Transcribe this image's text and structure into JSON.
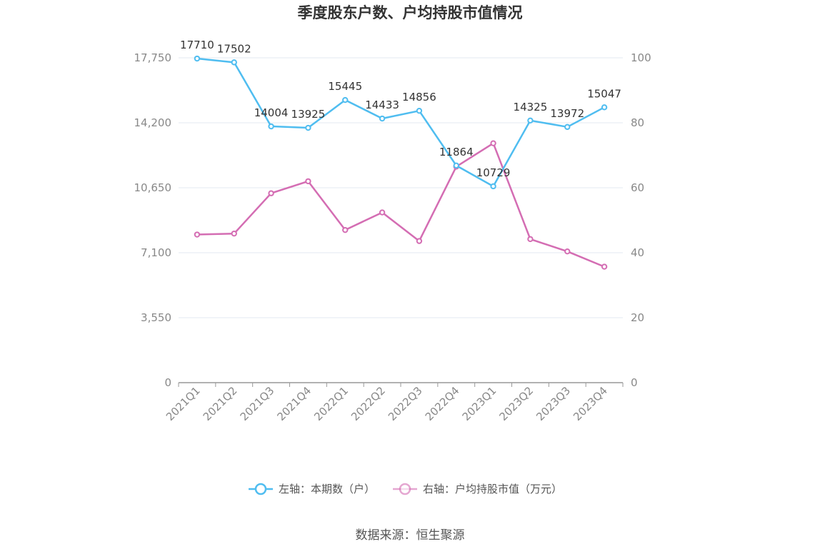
{
  "chart_data": {
    "type": "line",
    "title": "季度股东户数、户均持股市值情况",
    "categories": [
      "2021Q1",
      "2021Q2",
      "2021Q3",
      "2021Q4",
      "2022Q1",
      "2022Q2",
      "2022Q3",
      "2022Q4",
      "2023Q1",
      "2023Q2",
      "2023Q3",
      "2023Q4"
    ],
    "left_axis": {
      "min": 0,
      "max": 17750,
      "ticks": [
        "0",
        "3,550",
        "7,100",
        "10,650",
        "14,200",
        "17,750"
      ]
    },
    "right_axis": {
      "min": 0,
      "max": 100,
      "ticks": [
        "0",
        "20",
        "40",
        "60",
        "80",
        "100"
      ]
    },
    "series": [
      {
        "name": "左轴：本期数（户）",
        "axis": "left",
        "color": "#4fbdf0",
        "values": [
          17710,
          17502,
          14004,
          13925,
          15445,
          14433,
          14856,
          11864,
          10729,
          14325,
          13972,
          15047
        ],
        "labels": [
          "17710",
          "17502",
          "14004",
          "13925",
          "15445",
          "14433",
          "14856",
          "11864",
          "10729",
          "14325",
          "13972",
          "15047"
        ]
      },
      {
        "name": "右轴：户均持股市值（万元）",
        "axis": "right",
        "color": "#d46db3",
        "values": [
          45.6,
          45.9,
          58.3,
          62.0,
          47.0,
          52.4,
          43.6,
          66.5,
          73.7,
          44.2,
          40.4,
          35.7
        ]
      }
    ],
    "grid": true,
    "legend_position": "bottom"
  },
  "source": "数据来源：恒生聚源"
}
